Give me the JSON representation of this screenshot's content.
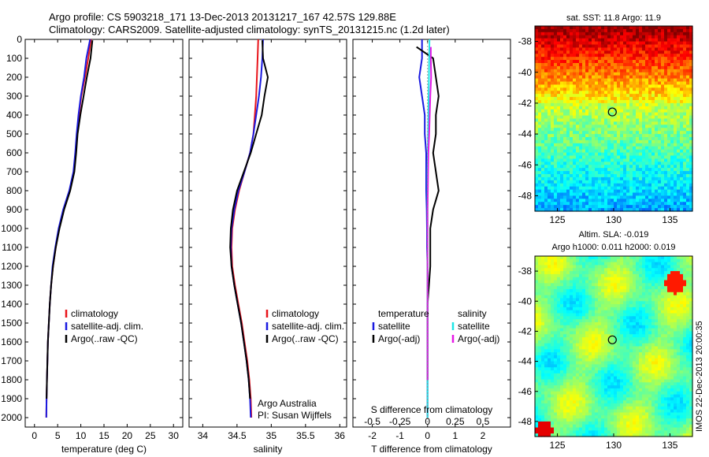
{
  "title_line1": "Argo profile: CS 5903218_171 13-Dec-2013 20131217_167 42.57S 129.88E",
  "title_line2": "Climatology: CARS2009. Satellite-adjusted climatology: synTS_20131215.nc (1.2d later)",
  "footer_label": "IMOS 22-Dec-2013 20:00:35",
  "colors": {
    "climatology": "#e8141a",
    "satellite": "#1a1ae0",
    "argo": "#000000",
    "t_argo": "#000000",
    "s_satellite": "#1ee6e6",
    "s_argo": "#e619e6"
  },
  "chart_data": [
    {
      "type": "line",
      "id": "temperature",
      "xlabel": "temperature (deg C)",
      "ylabel": "",
      "xlim": [
        -2,
        32
      ],
      "ylim": [
        2050,
        0
      ],
      "xticks": [
        "0",
        "5",
        "10",
        "15",
        "20",
        "25",
        "30"
      ],
      "xtick_values": [
        0,
        5,
        10,
        15,
        20,
        25,
        30
      ],
      "yticks": [
        "0",
        "100",
        "200",
        "300",
        "400",
        "500",
        "600",
        "700",
        "800",
        "900",
        "1000",
        "1100",
        "1200",
        "1300",
        "1400",
        "1500",
        "1600",
        "1700",
        "1800",
        "1900",
        "2000"
      ],
      "ytick_values": [
        0,
        100,
        200,
        300,
        400,
        500,
        600,
        700,
        800,
        900,
        1000,
        1100,
        1200,
        1300,
        1400,
        1500,
        1600,
        1700,
        1800,
        1900,
        2000
      ],
      "legend": [
        "climatology",
        "satellite-adj. clim.",
        "Argo(..raw -QC)"
      ],
      "series": [
        {
          "name": "climatology",
          "color_key": "climatology",
          "x": [
            12.2,
            11.6,
            10.9,
            10.1,
            9.6,
            9.2,
            8.9,
            8.5,
            7.6,
            6.3,
            5.3,
            4.6,
            4.0,
            3.6,
            3.3,
            3.1,
            2.9,
            2.8,
            2.7,
            2.6,
            2.55
          ],
          "y": [
            0,
            100,
            200,
            300,
            400,
            500,
            600,
            700,
            800,
            900,
            1000,
            1100,
            1200,
            1300,
            1400,
            1500,
            1600,
            1700,
            1800,
            1900,
            2000
          ]
        },
        {
          "name": "satellite-adj. clim.",
          "color_key": "satellite",
          "x": [
            12.0,
            11.2,
            10.7,
            10.0,
            9.5,
            9.1,
            8.8,
            8.4,
            7.5,
            6.2,
            5.2,
            4.5,
            3.9,
            3.6,
            3.3,
            3.1,
            2.9,
            2.8,
            2.7,
            2.6,
            2.55
          ],
          "y": [
            0,
            100,
            200,
            300,
            400,
            500,
            600,
            700,
            800,
            900,
            1000,
            1100,
            1200,
            1300,
            1400,
            1500,
            1600,
            1700,
            1800,
            1900,
            2000
          ]
        },
        {
          "name": "Argo(..raw -QC)",
          "color_key": "argo",
          "x": [
            12.5,
            12.1,
            11.3,
            10.6,
            9.9,
            9.3,
            9.0,
            8.6,
            7.7,
            6.4,
            5.4,
            4.6,
            4.0,
            3.6,
            3.3,
            3.1,
            2.9,
            2.8,
            2.7,
            2.6
          ],
          "y": [
            5,
            100,
            200,
            300,
            400,
            500,
            600,
            700,
            800,
            900,
            1000,
            1100,
            1200,
            1300,
            1400,
            1500,
            1600,
            1700,
            1800,
            1900
          ]
        }
      ]
    },
    {
      "type": "line",
      "id": "salinity",
      "xlabel": "salinity",
      "xlim": [
        33.8,
        36.1
      ],
      "ylim": [
        2050,
        0
      ],
      "xticks": [
        "34",
        "34.5",
        "35",
        "35.5",
        "36"
      ],
      "xtick_values": [
        34,
        34.5,
        35,
        35.5,
        36
      ],
      "legend": [
        "climatology",
        "satellite-adj. clim.",
        "Argo(..raw -QC)"
      ],
      "annotations": [
        "Argo Australia",
        "PI: Susan Wijffels"
      ],
      "series": [
        {
          "name": "climatology",
          "color_key": "climatology",
          "x": [
            34.81,
            34.8,
            34.79,
            34.78,
            34.76,
            34.74,
            34.69,
            34.61,
            34.53,
            34.47,
            34.43,
            34.42,
            34.43,
            34.47,
            34.52,
            34.57,
            34.61,
            34.65,
            34.68,
            34.7,
            34.71
          ],
          "y": [
            0,
            100,
            200,
            300,
            400,
            500,
            600,
            700,
            800,
            900,
            1000,
            1100,
            1200,
            1300,
            1400,
            1500,
            1600,
            1700,
            1800,
            1900,
            2000
          ]
        },
        {
          "name": "satellite-adj. clim.",
          "color_key": "satellite",
          "x": [
            34.88,
            34.87,
            34.85,
            34.82,
            34.78,
            34.74,
            34.69,
            34.61,
            34.52,
            34.46,
            34.42,
            34.41,
            34.42,
            34.46,
            34.51,
            34.56,
            34.6,
            34.64,
            34.67,
            34.69,
            34.7
          ],
          "y": [
            0,
            100,
            200,
            300,
            400,
            500,
            600,
            700,
            800,
            900,
            1000,
            1100,
            1200,
            1300,
            1400,
            1500,
            1600,
            1700,
            1800,
            1900,
            2000
          ]
        },
        {
          "name": "Argo(..raw -QC)",
          "color_key": "argo",
          "x": [
            34.87,
            34.88,
            34.95,
            34.9,
            34.86,
            34.78,
            34.7,
            34.6,
            34.5,
            34.44,
            34.41,
            34.4,
            34.42,
            34.46,
            34.51,
            34.56,
            34.6,
            34.64,
            34.67,
            34.69
          ],
          "y": [
            5,
            100,
            200,
            300,
            400,
            500,
            600,
            700,
            800,
            900,
            1000,
            1100,
            1200,
            1300,
            1400,
            1500,
            1600,
            1700,
            1800,
            1900
          ]
        }
      ]
    },
    {
      "type": "line",
      "id": "difference",
      "xlabel": "T difference from climatology",
      "xlabel_top": "S difference from climatology",
      "xlim": [
        -2.7,
        3
      ],
      "ylim": [
        2050,
        0
      ],
      "xticks": [
        "-2",
        "-1",
        "0",
        "1",
        "2"
      ],
      "xtick_values": [
        -2,
        -1,
        0,
        1,
        2
      ],
      "xticks_top": [
        "-0.5",
        "-0.25",
        "0",
        "0.25",
        "0.5"
      ],
      "xtick_top_values": [
        -2,
        -1,
        0,
        1,
        2
      ],
      "legend_left_title": "temperature",
      "legend_left": [
        "satellite",
        "Argo(-adj)"
      ],
      "legend_right_title": "salinity",
      "legend_right": [
        "satellite",
        "Argo(-adj)"
      ],
      "series": [
        {
          "name": "satellite",
          "group": "temperature",
          "color_key": "satellite",
          "x": [
            -0.2,
            -0.2,
            -0.3,
            -0.2,
            -0.1,
            -0.1,
            -0.05,
            -0.05,
            -0.05,
            -0.03,
            -0.02,
            -0.02,
            0,
            0,
            0,
            0,
            0,
            0,
            0,
            0,
            0
          ],
          "y": [
            0,
            100,
            200,
            300,
            400,
            500,
            600,
            700,
            800,
            900,
            1000,
            1100,
            1200,
            1300,
            1400,
            1500,
            1600,
            1700,
            1800,
            1900,
            2000
          ]
        },
        {
          "name": "Argo(-adj)",
          "group": "temperature",
          "color_key": "t_argo",
          "x": [
            -0.4,
            0.2,
            0.3,
            0.4,
            0.3,
            0.3,
            0.2,
            0.3,
            0.4,
            0.2,
            0.1,
            0.1,
            0.1,
            0.05,
            0,
            0,
            0,
            0,
            0
          ],
          "y": [
            40,
            100,
            200,
            300,
            400,
            500,
            600,
            700,
            800,
            900,
            1000,
            1100,
            1200,
            1300,
            1400,
            1500,
            1600,
            1700,
            1800
          ]
        },
        {
          "name": "satellite",
          "group": "salinity",
          "color_key": "s_satellite",
          "x": [
            0.07,
            0.06,
            0.05,
            0.04,
            0.03,
            0.02,
            0.01,
            0,
            0,
            0,
            0,
            0,
            0,
            0,
            0,
            0,
            0,
            0,
            0,
            0,
            0
          ],
          "y": [
            0,
            100,
            200,
            300,
            400,
            500,
            600,
            700,
            800,
            900,
            1000,
            1100,
            1200,
            1300,
            1400,
            1500,
            1600,
            1700,
            1800,
            1900,
            2000
          ]
        },
        {
          "name": "Argo(-adj)",
          "group": "salinity",
          "color_key": "s_argo",
          "x": [
            0.12,
            0.12,
            0.13,
            0.1,
            0.08,
            0.06,
            0.03,
            0.02,
            0.01,
            0,
            0,
            0,
            0,
            0,
            0,
            0,
            0,
            0,
            0
          ],
          "y": [
            40,
            100,
            200,
            300,
            400,
            500,
            600,
            700,
            800,
            900,
            1000,
            1100,
            1200,
            1300,
            1400,
            1500,
            1600,
            1700,
            1800
          ]
        }
      ]
    },
    {
      "type": "heatmap",
      "id": "sst_map",
      "title": "sat. SST: 11.8  Argo: 11.9",
      "xlim": [
        123,
        137
      ],
      "ylim": [
        -49,
        -37
      ],
      "xticks": [
        "125",
        "130",
        "135"
      ],
      "xtick_values": [
        125,
        130,
        135
      ],
      "yticks": [
        "-38",
        "-40",
        "-42",
        "-44",
        "-46",
        "-48"
      ],
      "ytick_values": [
        -38,
        -40,
        -42,
        -44,
        -46,
        -48
      ],
      "marker": {
        "lon": 129.88,
        "lat": -42.57
      }
    },
    {
      "type": "heatmap",
      "id": "sla_map",
      "title": "Altim. SLA: -0.019",
      "subtitle": "Argo h1000: 0.011 h2000: 0.019",
      "xlim": [
        123,
        137
      ],
      "ylim": [
        -49,
        -37
      ],
      "xticks": [
        "125",
        "130",
        "135"
      ],
      "xtick_values": [
        125,
        130,
        135
      ],
      "yticks": [
        "-38",
        "-40",
        "-42",
        "-44",
        "-46",
        "-48"
      ],
      "ytick_values": [
        -38,
        -40,
        -42,
        -44,
        -46,
        -48
      ],
      "marker": {
        "lon": 129.88,
        "lat": -42.57
      }
    }
  ]
}
